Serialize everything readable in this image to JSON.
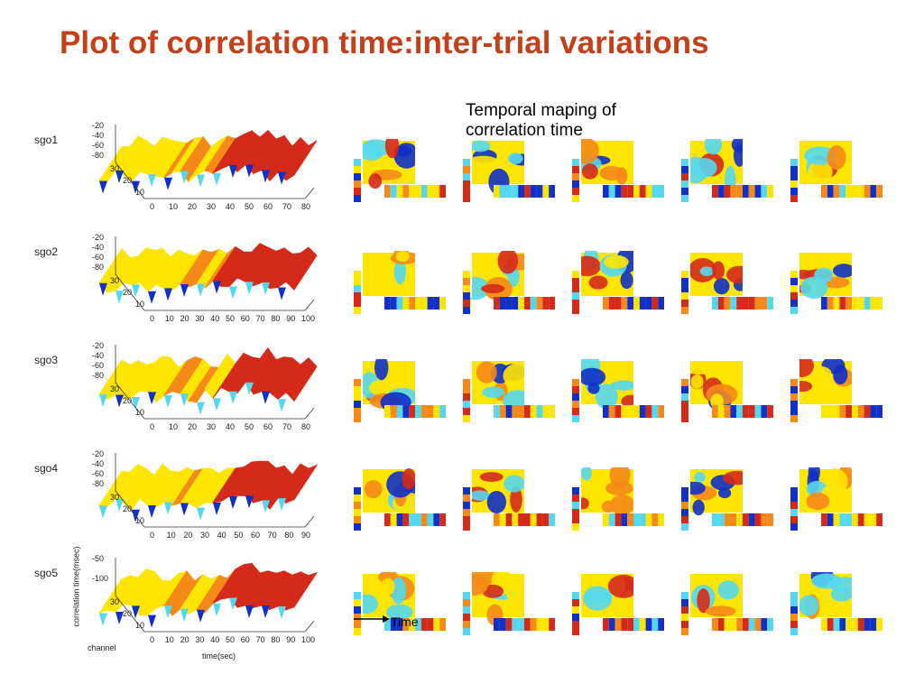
{
  "title": "Plot of correlation time:inter-trial variations",
  "temporal_title_line1": "Temporal maping of",
  "temporal_title_line2": "correlation time",
  "time_label": "Time",
  "ylabel": "correlation time(msec)",
  "xlabel": "time(sec)",
  "channel_label": "channel",
  "rows": [
    {
      "label": "sgo1",
      "z_ticks": [
        "-20",
        "-40",
        "-60",
        "-80"
      ],
      "channel_ticks": [
        "30",
        "20",
        "10"
      ],
      "time_ticks": [
        "0",
        "10",
        "20",
        "30",
        "40",
        "50",
        "60",
        "70",
        "80"
      ]
    },
    {
      "label": "sgo2",
      "z_ticks": [
        "-20",
        "-40",
        "-60",
        "-80"
      ],
      "channel_ticks": [
        "30",
        "20",
        "10"
      ],
      "time_ticks": [
        "0",
        "10",
        "20",
        "30",
        "40",
        "50",
        "60",
        "70",
        "80",
        "90",
        "100"
      ]
    },
    {
      "label": "sgo3",
      "z_ticks": [
        "-20",
        "-40",
        "-60",
        "-80"
      ],
      "channel_ticks": [
        "30",
        "20",
        "10"
      ],
      "time_ticks": [
        "0",
        "10",
        "20",
        "30",
        "40",
        "50",
        "60",
        "70",
        "80"
      ]
    },
    {
      "label": "sgo4",
      "z_ticks": [
        "-20",
        "-40",
        "-60",
        "-80"
      ],
      "channel_ticks": [
        "30",
        "20",
        "10"
      ],
      "time_ticks": [
        "0",
        "10",
        "20",
        "30",
        "40",
        "50",
        "60",
        "70",
        "80",
        "90"
      ]
    },
    {
      "label": "sgo5",
      "z_ticks": [
        "-50",
        "-100"
      ],
      "channel_ticks": [
        "30",
        "20",
        "10"
      ],
      "time_ticks": [
        "0",
        "10",
        "20",
        "30",
        "40",
        "50",
        "60",
        "70",
        "80",
        "90",
        "100"
      ]
    }
  ],
  "colors": {
    "title": "#c2401a",
    "high": "#d42a1a",
    "mid": "#ffe600",
    "low": "#55d8ef",
    "lowest": "#1030c8"
  }
}
